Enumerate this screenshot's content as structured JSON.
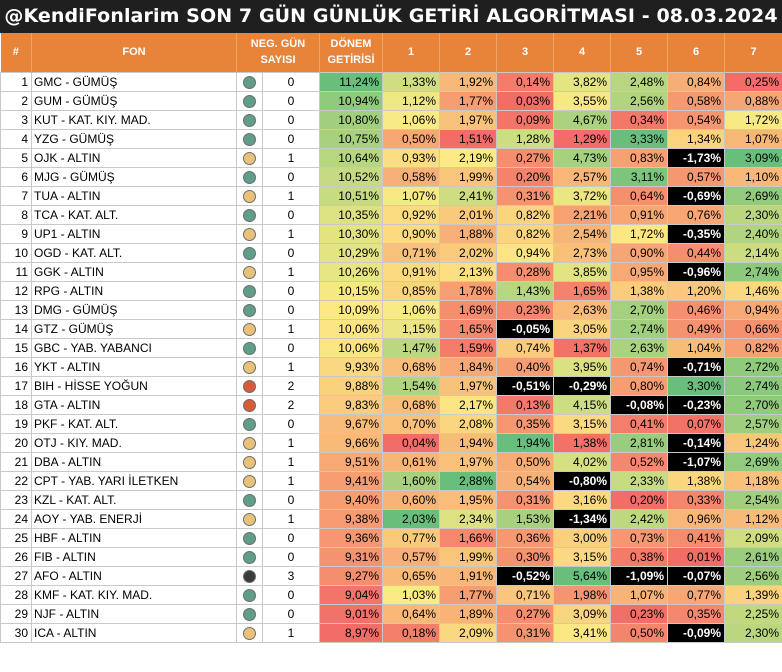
{
  "title": "@KendiFonlarim SON 7 GÜN GÜNLÜK GETİRİ ALGORİTMASI - 08.03.2024",
  "headers": {
    "idx": "#",
    "fon": "FON",
    "neg_line1": "NEG. GÜN",
    "neg_line2": "SAYISI",
    "donem_line1": "DÖNEM",
    "donem_line2": "GETİRİSİ",
    "days": [
      "1",
      "2",
      "3",
      "4",
      "5",
      "6",
      "7"
    ]
  },
  "colors": {
    "header": "#e8833a",
    "title_bg": "#1f1f1f",
    "circle_0": "#5f9e88",
    "circle_1": "#e8c27a",
    "circle_2": "#d85a38",
    "circle_3": "#3c3c3c"
  },
  "rows": [
    {
      "idx": "1",
      "fon": "GMC - GÜMÜŞ",
      "neg": "0",
      "donem": "11,24%",
      "d": [
        "1,33%",
        "1,92%",
        "0,14%",
        "3,82%",
        "2,48%",
        "0,84%",
        "0,25%"
      ]
    },
    {
      "idx": "2",
      "fon": "GUM - GÜMÜŞ",
      "neg": "0",
      "donem": "10,94%",
      "d": [
        "1,12%",
        "1,77%",
        "0,03%",
        "3,55%",
        "2,56%",
        "0,58%",
        "0,88%"
      ]
    },
    {
      "idx": "3",
      "fon": "KUT - KAT. KIY. MAD.",
      "neg": "0",
      "donem": "10,80%",
      "d": [
        "1,06%",
        "1,97%",
        "0,09%",
        "4,67%",
        "0,34%",
        "0,54%",
        "1,72%"
      ]
    },
    {
      "idx": "4",
      "fon": "YZG - GÜMÜŞ",
      "neg": "0",
      "donem": "10,75%",
      "d": [
        "0,50%",
        "1,51%",
        "1,28%",
        "1,29%",
        "3,33%",
        "1,34%",
        "1,07%"
      ]
    },
    {
      "idx": "5",
      "fon": "OJK - ALTIN",
      "neg": "1",
      "donem": "10,64%",
      "d": [
        "0,93%",
        "2,19%",
        "0,27%",
        "4,73%",
        "0,83%",
        "-1,73%",
        "3,09%"
      ]
    },
    {
      "idx": "6",
      "fon": "MJG - GÜMÜŞ",
      "neg": "0",
      "donem": "10,52%",
      "d": [
        "0,58%",
        "1,99%",
        "0,20%",
        "2,57%",
        "3,11%",
        "0,57%",
        "1,10%"
      ]
    },
    {
      "idx": "7",
      "fon": "TUA - ALTIN",
      "neg": "1",
      "donem": "10,51%",
      "d": [
        "1,07%",
        "2,41%",
        "0,31%",
        "3,72%",
        "0,64%",
        "-0,69%",
        "2,69%"
      ]
    },
    {
      "idx": "8",
      "fon": "TCA - KAT. ALT.",
      "neg": "0",
      "donem": "10,35%",
      "d": [
        "0,92%",
        "2,01%",
        "0,82%",
        "2,21%",
        "0,91%",
        "0,76%",
        "2,30%"
      ]
    },
    {
      "idx": "9",
      "fon": "UP1 - ALTIN",
      "neg": "1",
      "donem": "10,30%",
      "d": [
        "0,90%",
        "1,88%",
        "0,82%",
        "2,54%",
        "1,72%",
        "-0,35%",
        "2,40%"
      ]
    },
    {
      "idx": "10",
      "fon": "OGD - KAT. ALT.",
      "neg": "0",
      "donem": "10,29%",
      "d": [
        "0,71%",
        "2,02%",
        "0,94%",
        "2,73%",
        "0,90%",
        "0,44%",
        "2,14%"
      ]
    },
    {
      "idx": "11",
      "fon": "GGK - ALTIN",
      "neg": "1",
      "donem": "10,26%",
      "d": [
        "0,91%",
        "2,13%",
        "0,28%",
        "3,85%",
        "0,95%",
        "-0,96%",
        "2,74%"
      ]
    },
    {
      "idx": "12",
      "fon": "RPG - ALTIN",
      "neg": "0",
      "donem": "10,15%",
      "d": [
        "0,85%",
        "1,78%",
        "1,43%",
        "1,65%",
        "1,38%",
        "1,20%",
        "1,46%"
      ]
    },
    {
      "idx": "13",
      "fon": "DMG - GÜMÜŞ",
      "neg": "0",
      "donem": "10,09%",
      "d": [
        "1,06%",
        "1,69%",
        "0,23%",
        "2,63%",
        "2,70%",
        "0,46%",
        "0,94%"
      ]
    },
    {
      "idx": "14",
      "fon": "GTZ - GÜMÜŞ",
      "neg": "1",
      "donem": "10,06%",
      "d": [
        "1,15%",
        "1,65%",
        "-0,05%",
        "3,05%",
        "2,74%",
        "0,49%",
        "0,66%"
      ]
    },
    {
      "idx": "15",
      "fon": "GBC - YAB. YABANCI",
      "neg": "0",
      "donem": "10,06%",
      "d": [
        "1,47%",
        "1,59%",
        "0,74%",
        "1,37%",
        "2,63%",
        "1,04%",
        "0,82%"
      ]
    },
    {
      "idx": "16",
      "fon": "YKT - ALTIN",
      "neg": "1",
      "donem": "9,93%",
      "d": [
        "0,68%",
        "1,84%",
        "0,40%",
        "3,95%",
        "0,74%",
        "-0,71%",
        "2,72%"
      ]
    },
    {
      "idx": "17",
      "fon": "BIH - HİSSE YOĞUN",
      "neg": "2",
      "donem": "9,88%",
      "d": [
        "1,54%",
        "1,97%",
        "-0,51%",
        "-0,29%",
        "0,80%",
        "3,30%",
        "2,74%"
      ]
    },
    {
      "idx": "18",
      "fon": "GTA - ALTIN",
      "neg": "2",
      "donem": "9,83%",
      "d": [
        "0,68%",
        "2,17%",
        "0,13%",
        "4,15%",
        "-0,08%",
        "-0,23%",
        "2,70%"
      ]
    },
    {
      "idx": "19",
      "fon": "PKF - KAT. ALT.",
      "neg": "0",
      "donem": "9,67%",
      "d": [
        "0,70%",
        "2,08%",
        "0,35%",
        "3,15%",
        "0,41%",
        "0,07%",
        "2,57%"
      ]
    },
    {
      "idx": "20",
      "fon": "OTJ - KIY. MAD.",
      "neg": "1",
      "donem": "9,66%",
      "d": [
        "0,04%",
        "1,94%",
        "1,94%",
        "1,38%",
        "2,81%",
        "-0,14%",
        "1,24%"
      ]
    },
    {
      "idx": "21",
      "fon": "DBA - ALTIN",
      "neg": "1",
      "donem": "9,51%",
      "d": [
        "0,61%",
        "1,97%",
        "0,50%",
        "4,02%",
        "0,52%",
        "-1,07%",
        "2,69%"
      ]
    },
    {
      "idx": "22",
      "fon": "CPT - YAB. YARI İLETKEN",
      "neg": "1",
      "donem": "9,41%",
      "d": [
        "1,60%",
        "2,88%",
        "0,54%",
        "-0,80%",
        "2,33%",
        "1,38%",
        "1,18%"
      ]
    },
    {
      "idx": "23",
      "fon": "KZL - KAT. ALT.",
      "neg": "0",
      "donem": "9,40%",
      "d": [
        "0,60%",
        "1,95%",
        "0,31%",
        "3,16%",
        "0,20%",
        "0,33%",
        "2,54%"
      ]
    },
    {
      "idx": "24",
      "fon": "AOY - YAB. ENERJİ",
      "neg": "1",
      "donem": "9,38%",
      "d": [
        "2,03%",
        "2,34%",
        "1,53%",
        "-1,34%",
        "2,42%",
        "0,96%",
        "1,12%"
      ]
    },
    {
      "idx": "25",
      "fon": "HBF - ALTIN",
      "neg": "0",
      "donem": "9,36%",
      "d": [
        "0,77%",
        "1,66%",
        "0,36%",
        "3,00%",
        "0,73%",
        "0,41%",
        "2,09%"
      ]
    },
    {
      "idx": "26",
      "fon": "FIB - ALTIN",
      "neg": "0",
      "donem": "9,31%",
      "d": [
        "0,57%",
        "1,99%",
        "0,30%",
        "3,15%",
        "0,38%",
        "0,01%",
        "2,61%"
      ]
    },
    {
      "idx": "27",
      "fon": "AFO - ALTIN",
      "neg": "3",
      "donem": "9,27%",
      "d": [
        "0,65%",
        "1,91%",
        "-0,52%",
        "5,64%",
        "-1,09%",
        "-0,07%",
        "2,56%"
      ]
    },
    {
      "idx": "28",
      "fon": "KMF - KAT. KIY. MAD.",
      "neg": "0",
      "donem": "9,04%",
      "d": [
        "1,03%",
        "1,77%",
        "0,71%",
        "1,98%",
        "1,07%",
        "0,77%",
        "1,39%"
      ]
    },
    {
      "idx": "29",
      "fon": "NJF - ALTIN",
      "neg": "0",
      "donem": "9,01%",
      "d": [
        "0,64%",
        "1,89%",
        "0,27%",
        "3,09%",
        "0,23%",
        "0,35%",
        "2,25%"
      ]
    },
    {
      "idx": "30",
      "fon": "ICA - ALTIN",
      "neg": "1",
      "donem": "8,97%",
      "d": [
        "0,18%",
        "2,09%",
        "0,31%",
        "3,41%",
        "0,50%",
        "-0,09%",
        "2,30%"
      ]
    }
  ]
}
